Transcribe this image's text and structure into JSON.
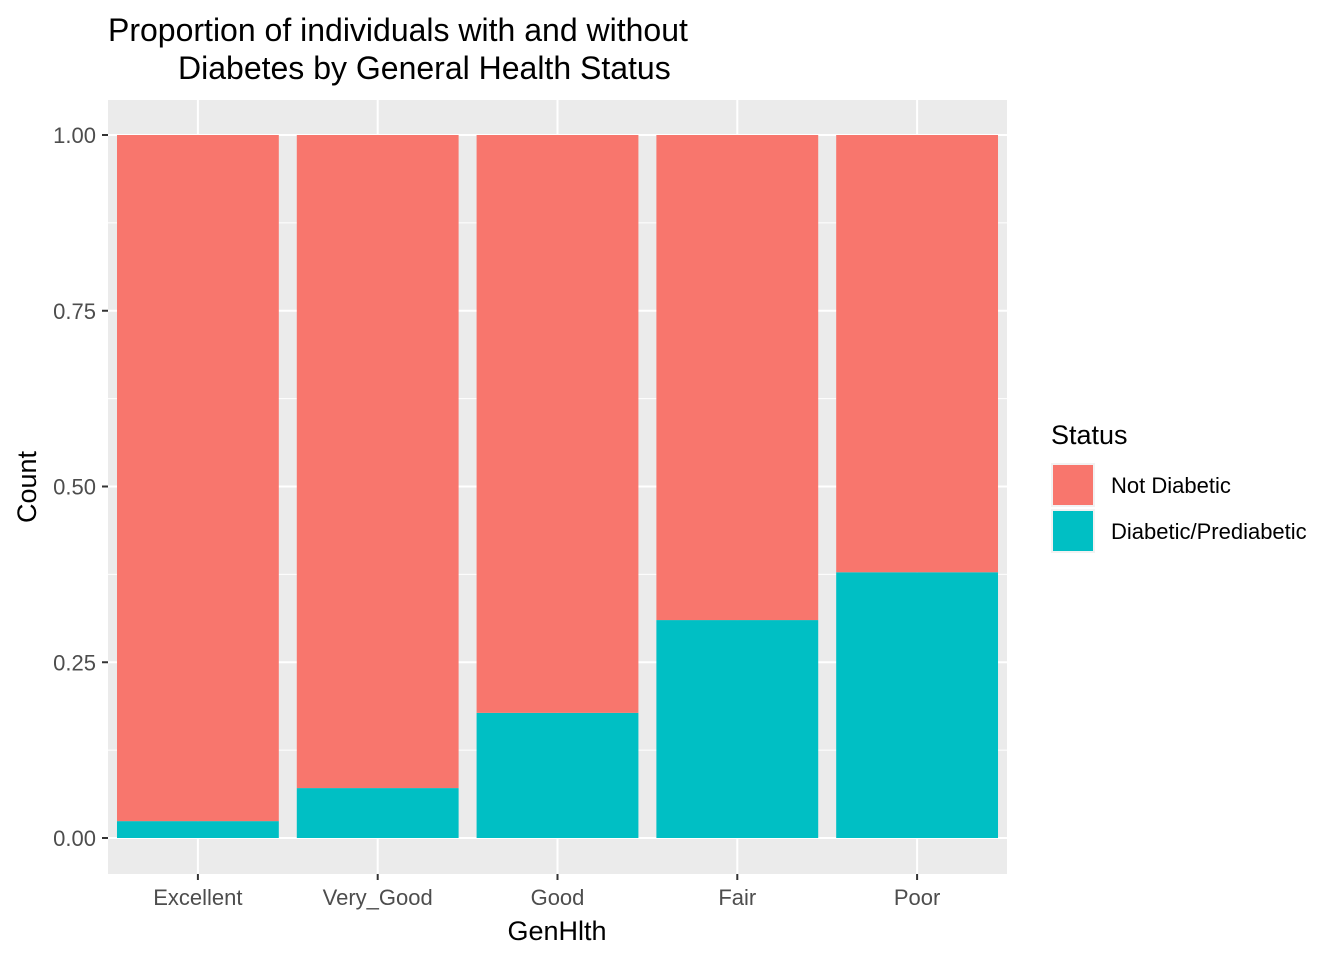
{
  "chart_data": {
    "type": "bar",
    "stacked": true,
    "title_line1": "Proportion of individuals with and without",
    "title_line2": "Diabetes by General Health Status",
    "xlabel": "GenHlth",
    "ylabel": "Count",
    "ylim": [
      0,
      1
    ],
    "y_ticks": [
      "0.00",
      "0.25",
      "0.50",
      "0.75",
      "1.00"
    ],
    "categories": [
      "Excellent",
      "Very_Good",
      "Good",
      "Fair",
      "Poor"
    ],
    "series": [
      {
        "name": "Diabetic/Prediabetic",
        "color": "#00BFC4",
        "values": [
          0.024,
          0.071,
          0.178,
          0.31,
          0.378
        ]
      },
      {
        "name": "Not Diabetic",
        "color": "#F8766D",
        "values": [
          0.976,
          0.929,
          0.822,
          0.69,
          0.622
        ]
      }
    ],
    "legend": {
      "title": "Status",
      "position": "right",
      "entries": [
        {
          "label": "Not Diabetic",
          "color": "#F8766D"
        },
        {
          "label": "Diabetic/Prediabetic",
          "color": "#00BFC4"
        }
      ]
    },
    "grid": true,
    "panel_background": "#EBEBEB"
  }
}
